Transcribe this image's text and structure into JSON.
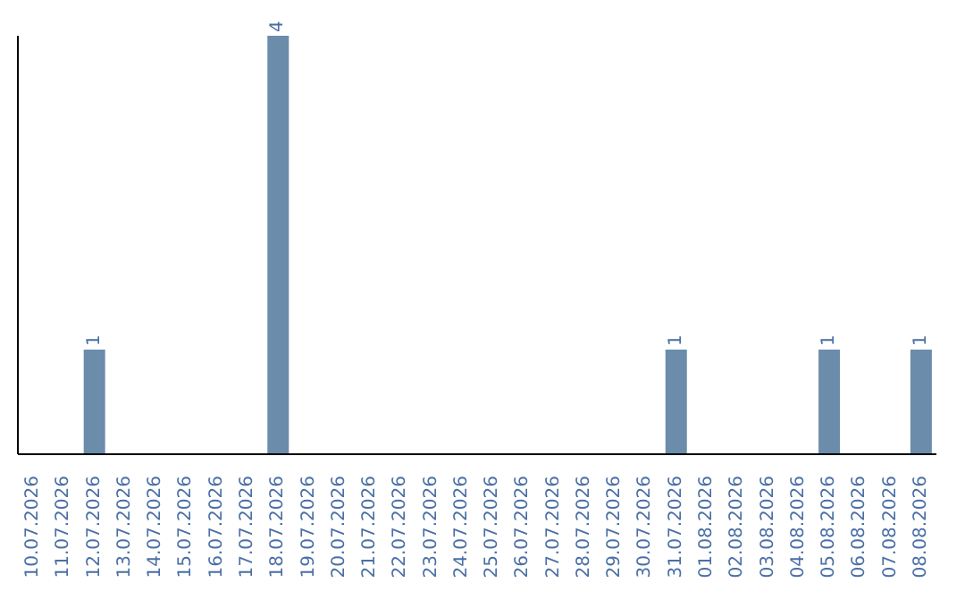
{
  "chart_data": {
    "type": "bar",
    "categories": [
      "10.07.2026",
      "11.07.2026",
      "12.07.2026",
      "13.07.2026",
      "14.07.2026",
      "15.07.2026",
      "16.07.2026",
      "17.07.2026",
      "18.07.2026",
      "19.07.2026",
      "20.07.2026",
      "21.07.2026",
      "22.07.2026",
      "23.07.2026",
      "24.07.2026",
      "25.07.2026",
      "26.07.2026",
      "27.07.2026",
      "28.07.2026",
      "29.07.2026",
      "30.07.2026",
      "31.07.2026",
      "01.08.2026",
      "02.08.2026",
      "03.08.2026",
      "04.08.2026",
      "05.08.2026",
      "06.08.2026",
      "07.08.2026",
      "08.08.2026"
    ],
    "values": [
      0,
      0,
      1,
      0,
      0,
      0,
      0,
      0,
      4,
      0,
      0,
      0,
      0,
      0,
      0,
      0,
      0,
      0,
      0,
      0,
      0,
      1,
      0,
      0,
      0,
      0,
      1,
      0,
      0,
      1
    ],
    "value_labels": [
      null,
      null,
      "1",
      null,
      null,
      null,
      null,
      null,
      "4",
      null,
      null,
      null,
      null,
      null,
      null,
      null,
      null,
      null,
      null,
      null,
      null,
      "1",
      null,
      null,
      null,
      null,
      "1",
      null,
      null,
      "1"
    ],
    "color": "#6b8cab",
    "tick_labels": "x",
    "grid": false,
    "legend": false
  }
}
